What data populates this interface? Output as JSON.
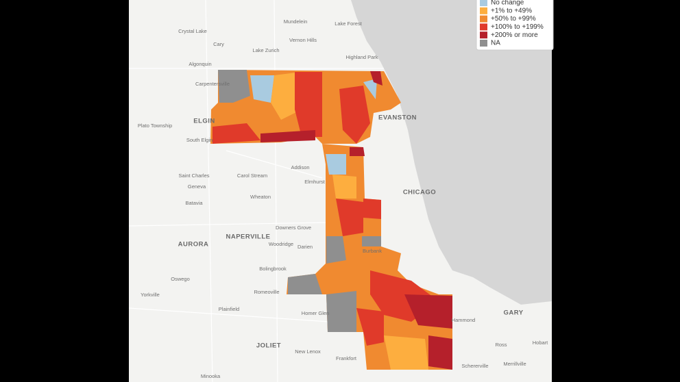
{
  "legend": {
    "items": [
      {
        "label": "No change",
        "color": "#a9cbe0"
      },
      {
        "label": "+1% to +49%",
        "color": "#fdae3f"
      },
      {
        "label": "+50% to +99%",
        "color": "#f08a30"
      },
      {
        "label": "+100% to +199%",
        "color": "#e03a2a"
      },
      {
        "label": "+200% or more",
        "color": "#b5202b"
      },
      {
        "label": "NA",
        "color": "#8f8f8f"
      }
    ]
  },
  "places": [
    "Crystal Lake",
    "Mundelein",
    "Lake Forest",
    "Cary",
    "Vernon Hills",
    "Lake Zurich",
    "Highland Park",
    "Algonquin",
    "Carpentersville",
    "Plato Township",
    "ELGIN",
    "EVANSTON",
    "South Elgin",
    "Addison",
    "Saint Charles",
    "Carol Stream",
    "Elmhurst",
    "Geneva",
    "CHICAGO",
    "Batavia",
    "Wheaton",
    "Downers Grove",
    "NAPERVILLE",
    "AURORA",
    "Woodridge",
    "Darien",
    "Burbank",
    "Bolingbrook",
    "Oswego",
    "Romeoville",
    "Yorkville",
    "Plainfield",
    "Homer Glen",
    "GARY",
    "Hammond",
    "JOLIET",
    "New Lenox",
    "Frankfort",
    "Ross",
    "Hobart",
    "Merrillville",
    "Schererville",
    "Minooka"
  ]
}
